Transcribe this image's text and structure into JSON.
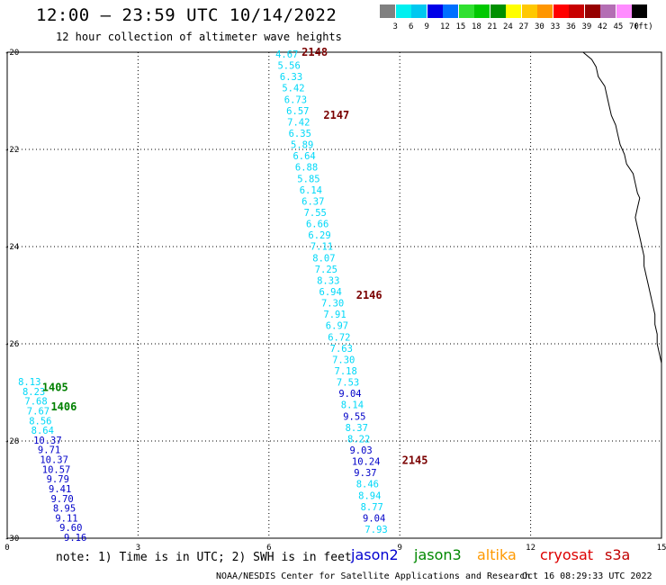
{
  "header": {
    "title": "12:00 – 23:59 UTC 10/14/2022",
    "subtitle": "12 hour collection of altimeter wave heights"
  },
  "colorbar": {
    "unit": "(ft)",
    "swatches": [
      {
        "color": "#808080",
        "label": ""
      },
      {
        "color": "#00f0f0",
        "label": "3"
      },
      {
        "color": "#00c8f0",
        "label": "6"
      },
      {
        "color": "#0000e8",
        "label": "9"
      },
      {
        "color": "#0070ff",
        "label": "12"
      },
      {
        "color": "#30e030",
        "label": "15"
      },
      {
        "color": "#00c800",
        "label": "18"
      },
      {
        "color": "#009000",
        "label": "21"
      },
      {
        "color": "#ffff00",
        "label": "24"
      },
      {
        "color": "#ffc800",
        "label": "27"
      },
      {
        "color": "#ff9600",
        "label": "30"
      },
      {
        "color": "#ff0000",
        "label": "33"
      },
      {
        "color": "#c80000",
        "label": "36"
      },
      {
        "color": "#960000",
        "label": "39"
      },
      {
        "color": "#b46eb4",
        "label": "42"
      },
      {
        "color": "#ff8cff",
        "label": "45"
      },
      {
        "color": "#000000",
        "label": "70"
      }
    ]
  },
  "map": {
    "x_axis": {
      "min": 0,
      "max": 15,
      "ticks": [
        "0",
        "3",
        "6",
        "9",
        "12",
        "15"
      ]
    },
    "y_axis": {
      "min": -30,
      "max": -20,
      "ticks": [
        "-20",
        "-22",
        "-24",
        "-26",
        "-28",
        "-30"
      ]
    },
    "passes": [
      {
        "label": "2148",
        "lon": 6.75,
        "lat": -20.0,
        "color": "#7a0000"
      },
      {
        "label": "2147",
        "lon": 7.25,
        "lat": -21.3,
        "color": "#7a0000"
      },
      {
        "label": "2146",
        "lon": 8.0,
        "lat": -25.0,
        "color": "#7a0000"
      },
      {
        "label": "2145",
        "lon": 9.05,
        "lat": -28.4,
        "color": "#7a0000"
      },
      {
        "label": "1405",
        "lon": 0.8,
        "lat": -26.9,
        "color": "#008000"
      },
      {
        "label": "1406",
        "lon": 1.0,
        "lat": -27.3,
        "color": "#008000"
      }
    ],
    "track_a": [
      {
        "lon": 6.15,
        "lat": -20.0,
        "value": "4.67",
        "color": "#00d8f8"
      },
      {
        "lon": 6.2,
        "lat": -20.2,
        "value": "5.56",
        "color": "#00d8f8"
      },
      {
        "lon": 6.25,
        "lat": -20.4,
        "value": "6.33",
        "color": "#00d8f8"
      },
      {
        "lon": 6.3,
        "lat": -20.6,
        "value": "5.42",
        "color": "#00d8f8"
      },
      {
        "lon": 6.35,
        "lat": -20.8,
        "value": "6.73",
        "color": "#00d8f8"
      },
      {
        "lon": 6.4,
        "lat": -21.0,
        "value": "6.57",
        "color": "#00d8f8"
      },
      {
        "lon": 6.42,
        "lat": -21.2,
        "value": "7.42",
        "color": "#00d8f8"
      },
      {
        "lon": 6.45,
        "lat": -21.4,
        "value": "6.35",
        "color": "#00d8f8"
      },
      {
        "lon": 6.5,
        "lat": -21.6,
        "value": "5.89",
        "color": "#00d8f8"
      },
      {
        "lon": 6.55,
        "lat": -21.8,
        "value": "6.64",
        "color": "#00d8f8"
      },
      {
        "lon": 6.6,
        "lat": -22.1,
        "value": "6.88",
        "color": "#00d8f8"
      },
      {
        "lon": 6.65,
        "lat": -22.4,
        "value": "5.85",
        "color": "#00d8f8"
      },
      {
        "lon": 6.7,
        "lat": -22.7,
        "value": "6.14",
        "color": "#00d8f8"
      },
      {
        "lon": 6.75,
        "lat": -23.0,
        "value": "6.37",
        "color": "#00d8f8"
      },
      {
        "lon": 6.8,
        "lat": -23.3,
        "value": "7.55",
        "color": "#00d8f8"
      },
      {
        "lon": 6.85,
        "lat": -23.6,
        "value": "6.66",
        "color": "#00d8f8"
      },
      {
        "lon": 6.9,
        "lat": -23.9,
        "value": "6.29",
        "color": "#00d8f8"
      },
      {
        "lon": 6.95,
        "lat": -24.2,
        "value": "7.11",
        "color": "#00d8f8"
      },
      {
        "lon": 7.0,
        "lat": -24.5,
        "value": "8.07",
        "color": "#00d8f8"
      },
      {
        "lon": 7.05,
        "lat": -24.8,
        "value": "7.25",
        "color": "#00d8f8"
      },
      {
        "lon": 7.1,
        "lat": -25.1,
        "value": "8.33",
        "color": "#00d8f8"
      },
      {
        "lon": 7.15,
        "lat": -25.4,
        "value": "6.94",
        "color": "#00d8f8"
      },
      {
        "lon": 7.2,
        "lat": -25.7,
        "value": "7.30",
        "color": "#00d8f8"
      },
      {
        "lon": 7.25,
        "lat": -26.0,
        "value": "7.91",
        "color": "#00d8f8"
      },
      {
        "lon": 7.3,
        "lat": -26.3,
        "value": "6.97",
        "color": "#00d8f8"
      },
      {
        "lon": 7.35,
        "lat": -26.6,
        "value": "6.72",
        "color": "#00d8f8"
      },
      {
        "lon": 7.4,
        "lat": -26.9,
        "value": "7.63",
        "color": "#00d8f8"
      },
      {
        "lon": 7.45,
        "lat": -27.2,
        "value": "7.30",
        "color": "#00d8f8"
      },
      {
        "lon": 7.5,
        "lat": -27.5,
        "value": "7.18",
        "color": "#00d8f8"
      },
      {
        "lon": 7.55,
        "lat": -27.8,
        "value": "7.53",
        "color": "#00d8f8"
      },
      {
        "lon": 7.6,
        "lat": -28.1,
        "value": "9.04",
        "color": "#0000c8"
      },
      {
        "lon": 7.65,
        "lat": -28.4,
        "value": "8.14",
        "color": "#00d8f8"
      },
      {
        "lon": 7.7,
        "lat": -28.7,
        "value": "9.55",
        "color": "#0000c8"
      },
      {
        "lon": 7.75,
        "lat": -29.0,
        "value": "8.37",
        "color": "#00d8f8"
      },
      {
        "lon": 7.8,
        "lat": -29.3,
        "value": "8.22",
        "color": "#00d8f8"
      },
      {
        "lon": 7.85,
        "lat": -29.6,
        "value": "9.03",
        "color": "#0000c8"
      },
      {
        "lon": 7.9,
        "lat": -29.9,
        "value": "10.24",
        "color": "#0000c8"
      },
      {
        "lon": 7.95,
        "lat": -30.2,
        "value": "9.37",
        "color": "#0000c8"
      },
      {
        "lon": 8.0,
        "lat": -30.5,
        "value": "8.46",
        "color": "#00d8f8"
      },
      {
        "lon": 8.05,
        "lat": -30.8,
        "value": "8.94",
        "color": "#00d8f8"
      },
      {
        "lon": 8.1,
        "lat": -31.1,
        "value": "8.77",
        "color": "#00d8f8"
      },
      {
        "lon": 8.15,
        "lat": -31.4,
        "value": "9.04",
        "color": "#0000c8"
      },
      {
        "lon": 8.2,
        "lat": -31.7,
        "value": "7.93",
        "color": "#00d8f8"
      }
    ],
    "track_b": [
      {
        "lon": 0.25,
        "lat": -26.9,
        "value": "8.13",
        "color": "#00d8f8"
      },
      {
        "lon": 0.35,
        "lat": -27.1,
        "value": "8.23",
        "color": "#00d8f8"
      },
      {
        "lon": 0.4,
        "lat": -27.3,
        "value": "7.68",
        "color": "#00d8f8"
      },
      {
        "lon": 0.45,
        "lat": -27.5,
        "value": "7.67",
        "color": "#00d8f8"
      },
      {
        "lon": 0.5,
        "lat": -27.7,
        "value": "8.56",
        "color": "#00d8f8"
      },
      {
        "lon": 0.55,
        "lat": -27.9,
        "value": "8.64",
        "color": "#00d8f8"
      },
      {
        "lon": 0.6,
        "lat": -28.1,
        "value": "10.37",
        "color": "#0000c8"
      },
      {
        "lon": 0.7,
        "lat": -28.3,
        "value": "9.71",
        "color": "#0000c8"
      },
      {
        "lon": 0.75,
        "lat": -28.5,
        "value": "10.37",
        "color": "#0000c8"
      },
      {
        "lon": 0.8,
        "lat": -28.7,
        "value": "10.57",
        "color": "#0000c8"
      },
      {
        "lon": 0.9,
        "lat": -28.9,
        "value": "9.79",
        "color": "#0000c8"
      },
      {
        "lon": 0.95,
        "lat": -29.1,
        "value": "9.41",
        "color": "#0000c8"
      },
      {
        "lon": 1.0,
        "lat": -29.3,
        "value": "9.70",
        "color": "#0000c8"
      },
      {
        "lon": 1.05,
        "lat": -29.5,
        "value": "8.95",
        "color": "#0000c8"
      },
      {
        "lon": 1.1,
        "lat": -29.7,
        "value": "9.11",
        "color": "#0000c8"
      },
      {
        "lon": 1.2,
        "lat": -29.9,
        "value": "9.60",
        "color": "#0000c8"
      },
      {
        "lon": 1.3,
        "lat": -30.0,
        "value": "9.16",
        "color": "#0000c8"
      }
    ],
    "coastline": [
      [
        13.2,
        -20.0
      ],
      [
        13.4,
        -20.15
      ],
      [
        13.5,
        -20.3
      ],
      [
        13.55,
        -20.5
      ],
      [
        13.7,
        -20.7
      ],
      [
        13.75,
        -20.9
      ],
      [
        13.8,
        -21.1
      ],
      [
        13.85,
        -21.3
      ],
      [
        13.95,
        -21.5
      ],
      [
        14.0,
        -21.7
      ],
      [
        14.05,
        -21.9
      ],
      [
        14.15,
        -22.1
      ],
      [
        14.2,
        -22.3
      ],
      [
        14.35,
        -22.5
      ],
      [
        14.4,
        -22.7
      ],
      [
        14.45,
        -22.9
      ],
      [
        14.5,
        -23.0
      ],
      [
        14.45,
        -23.2
      ],
      [
        14.4,
        -23.4
      ],
      [
        14.45,
        -23.6
      ],
      [
        14.5,
        -23.8
      ],
      [
        14.55,
        -24.0
      ],
      [
        14.6,
        -24.2
      ],
      [
        14.6,
        -24.4
      ],
      [
        14.65,
        -24.6
      ],
      [
        14.7,
        -24.8
      ],
      [
        14.75,
        -25.0
      ],
      [
        14.8,
        -25.2
      ],
      [
        14.85,
        -25.4
      ],
      [
        14.85,
        -25.6
      ],
      [
        14.9,
        -25.8
      ],
      [
        14.9,
        -26.0
      ],
      [
        14.95,
        -26.2
      ],
      [
        15.0,
        -26.4
      ]
    ]
  },
  "footer": {
    "note": "note: 1) Time is in UTC; 2) SWH is in feet",
    "satellites": [
      {
        "name": "jason2",
        "color": "#0000d0",
        "left": 390
      },
      {
        "name": "jason3",
        "color": "#008800",
        "left": 460
      },
      {
        "name": "altika",
        "color": "#ff9900",
        "left": 530
      },
      {
        "name": "cryosat",
        "color": "#dd0000",
        "left": 600
      },
      {
        "name": "s3a",
        "color": "#c00000",
        "left": 672
      }
    ],
    "credit": "NOAA/NESDIS Center for Satellite Applications and Research",
    "timestamp": "Oct 16 08:29:33 UTC 2022"
  }
}
